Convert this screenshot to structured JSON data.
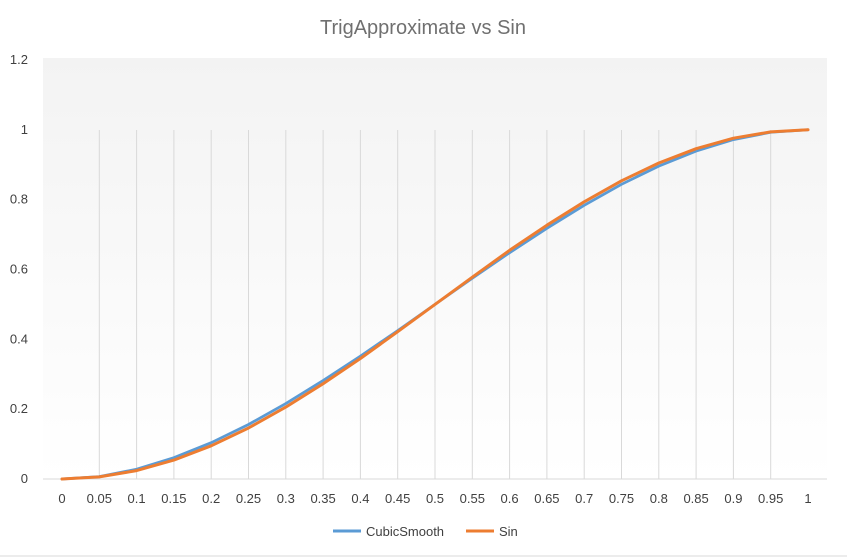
{
  "chart_data": {
    "type": "line",
    "title": "TrigApproximate vs Sin",
    "xlabel": "",
    "ylabel": "",
    "x": [
      "0",
      "0.05",
      "0.1",
      "0.15",
      "0.2",
      "0.25",
      "0.3",
      "0.35",
      "0.4",
      "0.45",
      "0.5",
      "0.55",
      "0.6",
      "0.65",
      "0.7",
      "0.75",
      "0.8",
      "0.85",
      "0.9",
      "0.95",
      "1"
    ],
    "ylim": [
      0,
      1.2
    ],
    "yticks": [
      "0",
      "0.2",
      "0.4",
      "0.6",
      "0.8",
      "1",
      "1.2"
    ],
    "grid": "vertical",
    "legend_position": "bottom",
    "series": [
      {
        "name": "CubicSmooth",
        "color": "#5b9bd5",
        "values": [
          0,
          0.007,
          0.028,
          0.061,
          0.104,
          0.156,
          0.216,
          0.282,
          0.352,
          0.425,
          0.5,
          0.575,
          0.648,
          0.718,
          0.784,
          0.844,
          0.896,
          0.939,
          0.972,
          0.993,
          1
        ]
      },
      {
        "name": "Sin",
        "color": "#ed7d31",
        "values": [
          0,
          0.006,
          0.024,
          0.054,
          0.095,
          0.146,
          0.206,
          0.273,
          0.345,
          0.422,
          0.5,
          0.578,
          0.655,
          0.727,
          0.794,
          0.854,
          0.905,
          0.946,
          0.976,
          0.994,
          1
        ]
      }
    ]
  }
}
